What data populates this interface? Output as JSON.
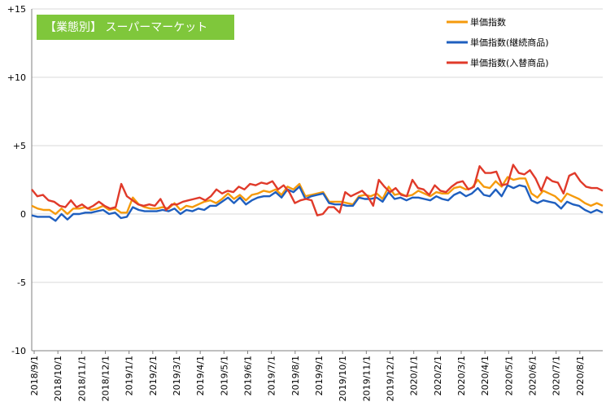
{
  "chart_data": {
    "type": "line",
    "title": "【業態別】 スーパーマーケット",
    "xlabel": "",
    "ylabel": "",
    "ylim": [
      -10,
      15
    ],
    "yticks": [
      {
        "value": 15,
        "label": "+15"
      },
      {
        "value": 10,
        "label": "+10"
      },
      {
        "value": 5,
        "label": "+5"
      },
      {
        "value": 0,
        "label": "0"
      },
      {
        "value": -5,
        "label": "-5"
      },
      {
        "value": -10,
        "label": "-10"
      }
    ],
    "xticks": [
      "2018/9/1",
      "2018/10/1",
      "2018/11/1",
      "2018/12/1",
      "2019/1/1",
      "2019/2/1",
      "2019/3/1",
      "2019/4/1",
      "2019/5/1",
      "2019/6/1",
      "2019/7/1",
      "2019/8/1",
      "2019/9/1",
      "2019/10/1",
      "2019/11/1",
      "2019/12/1",
      "2020/1/1",
      "2020/2/1",
      "2020/3/1",
      "2020/4/1",
      "2020/5/1",
      "2020/6/1",
      "2020/7/1",
      "2020/8/1"
    ],
    "grid": "horizontal",
    "legend_position": "top-right",
    "series": [
      {
        "name": "単価指数",
        "color": "#f59a0c",
        "values": [
          0.6,
          0.4,
          0.3,
          0.3,
          0.0,
          0.4,
          0.0,
          0.4,
          0.4,
          0.5,
          0.3,
          0.4,
          0.6,
          0.3,
          0.4,
          0.1,
          0.1,
          1.2,
          0.7,
          0.5,
          0.4,
          0.4,
          0.5,
          0.4,
          0.8,
          0.3,
          0.6,
          0.5,
          0.7,
          0.9,
          1.0,
          0.8,
          1.1,
          1.5,
          1.1,
          1.4,
          1.0,
          1.4,
          1.5,
          1.7,
          1.6,
          1.8,
          1.4,
          2.0,
          1.8,
          2.2,
          1.3,
          1.4,
          1.5,
          1.6,
          0.9,
          0.9,
          0.9,
          0.8,
          0.7,
          1.3,
          1.4,
          1.3,
          1.5,
          1.1,
          2.0,
          1.4,
          1.5,
          1.3,
          1.4,
          1.7,
          1.5,
          1.3,
          1.6,
          1.5,
          1.5,
          1.9,
          2.0,
          1.8,
          1.9,
          2.5,
          2.0,
          1.9,
          2.4,
          2.0,
          2.7,
          2.5,
          2.6,
          2.6,
          1.5,
          1.2,
          1.7,
          1.5,
          1.3,
          0.9,
          1.5,
          1.3,
          1.1,
          0.8,
          0.6,
          0.8,
          0.6
        ]
      },
      {
        "name": "単価指数(継続商品)",
        "color": "#1f5fbf",
        "values": [
          -0.1,
          -0.2,
          -0.2,
          -0.2,
          -0.5,
          0.0,
          -0.4,
          0.0,
          0.0,
          0.1,
          0.1,
          0.2,
          0.3,
          0.0,
          0.1,
          -0.3,
          -0.2,
          0.5,
          0.3,
          0.2,
          0.2,
          0.2,
          0.3,
          0.2,
          0.4,
          0.0,
          0.3,
          0.2,
          0.4,
          0.3,
          0.6,
          0.6,
          0.9,
          1.2,
          0.8,
          1.2,
          0.7,
          1.0,
          1.2,
          1.3,
          1.3,
          1.6,
          1.2,
          1.8,
          1.6,
          2.0,
          1.1,
          1.3,
          1.4,
          1.5,
          0.8,
          0.7,
          0.7,
          0.6,
          0.6,
          1.2,
          1.1,
          1.1,
          1.2,
          0.9,
          1.6,
          1.1,
          1.2,
          1.0,
          1.2,
          1.2,
          1.1,
          1.0,
          1.3,
          1.1,
          1.0,
          1.4,
          1.6,
          1.3,
          1.5,
          1.9,
          1.4,
          1.3,
          1.8,
          1.3,
          2.1,
          1.9,
          2.1,
          2.0,
          1.0,
          0.8,
          1.0,
          0.9,
          0.8,
          0.4,
          0.9,
          0.7,
          0.6,
          0.3,
          0.1,
          0.3,
          0.1
        ]
      },
      {
        "name": "単価指数(入替商品)",
        "color": "#e03a2a",
        "values": [
          1.8,
          1.3,
          1.4,
          1.0,
          0.9,
          0.6,
          0.5,
          1.0,
          0.5,
          0.7,
          0.4,
          0.6,
          0.9,
          0.6,
          0.4,
          0.5,
          2.2,
          1.3,
          1.0,
          0.7,
          0.6,
          0.7,
          0.6,
          1.1,
          0.3,
          0.7,
          0.7,
          0.9,
          1.0,
          1.1,
          1.2,
          1.0,
          1.3,
          1.8,
          1.5,
          1.7,
          1.6,
          2.0,
          1.8,
          2.2,
          2.1,
          2.3,
          2.2,
          2.4,
          1.8,
          2.1,
          1.6,
          0.8,
          1.0,
          1.1,
          1.0,
          -0.1,
          0.0,
          0.5,
          0.5,
          0.1,
          1.6,
          1.3,
          1.5,
          1.7,
          1.3,
          0.6,
          2.5,
          2.0,
          1.6,
          1.9,
          1.4,
          1.3,
          2.5,
          1.9,
          1.8,
          1.4,
          2.1,
          1.7,
          1.6,
          2.0,
          2.3,
          2.4,
          1.8,
          2.0,
          3.5,
          3.0,
          3.0,
          3.1,
          2.1,
          2.2,
          3.6,
          3.0,
          2.9,
          3.2,
          2.6,
          1.7,
          2.7,
          2.4,
          2.3,
          1.5,
          2.8,
          3.0,
          2.4,
          2.0,
          1.9,
          1.9,
          1.7
        ]
      }
    ]
  }
}
